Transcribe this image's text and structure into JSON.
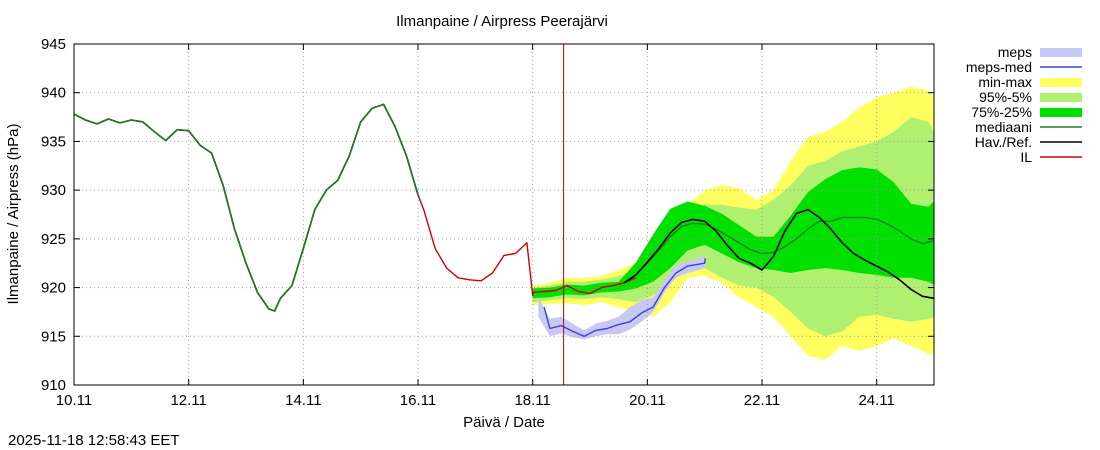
{
  "chart_data": {
    "type": "area",
    "title": "Ilmanpaine / Airpress Peerajärvi",
    "xlabel": "Päivä / Date",
    "ylabel": "Ilmanpaine / Airpress (hPa)",
    "ylim": [
      910,
      945
    ],
    "xlim": [
      0,
      15
    ],
    "x_unit": "days since 10.11 00:00",
    "yticks": [
      910,
      915,
      920,
      925,
      930,
      935,
      940,
      945
    ],
    "xticks": [
      {
        "x": 0,
        "label": "10.11"
      },
      {
        "x": 2,
        "label": "12.11"
      },
      {
        "x": 4,
        "label": "14.11"
      },
      {
        "x": 6,
        "label": "16.11"
      },
      {
        "x": 8,
        "label": "18.11"
      },
      {
        "x": 10,
        "label": "20.11"
      },
      {
        "x": 12,
        "label": "22.11"
      },
      {
        "x": 14,
        "label": "24.11"
      }
    ],
    "grid": true,
    "legend_position": "right",
    "timestamp": "2025-11-18 12:58:43 EET",
    "now_marker_x": 8.54,
    "legend": [
      {
        "label": "meps",
        "kind": "band",
        "color": "#c8c8f4"
      },
      {
        "label": "meps-med",
        "kind": "line",
        "color": "#4040d0"
      },
      {
        "label": "min-max",
        "kind": "band",
        "color": "#ffff60"
      },
      {
        "label": "95%-5%",
        "kind": "band",
        "color": "#b0f070"
      },
      {
        "label": "75%-25%",
        "kind": "band",
        "color": "#00e000"
      },
      {
        "label": "mediaani",
        "kind": "line",
        "color": "#208020"
      },
      {
        "label": "Hav./Ref.",
        "kind": "line",
        "color": "#000000"
      },
      {
        "label": "IL",
        "kind": "line",
        "color": "#d00000"
      }
    ],
    "series": [
      {
        "name": "Hav./Ref. observed",
        "color": "#000000",
        "x": [
          0,
          0.2,
          0.4,
          0.6,
          0.8,
          1.0,
          1.2,
          1.4,
          1.6,
          1.8,
          2.0,
          2.2,
          2.4,
          2.6,
          2.8,
          3.0,
          3.2,
          3.4,
          3.5,
          3.6,
          3.8,
          4.0,
          4.2,
          4.4,
          4.6,
          4.8,
          5.0,
          5.2,
          5.4,
          5.6,
          5.8,
          6.0
        ],
        "y": [
          937.8,
          937.2,
          936.8,
          937.3,
          936.9,
          937.2,
          937.0,
          936.0,
          935.1,
          936.2,
          936.1,
          934.6,
          933.8,
          930.5,
          926.0,
          922.5,
          919.5,
          917.8,
          917.6,
          918.9,
          920.2,
          924.0,
          928.0,
          930.0,
          931.0,
          933.5,
          937.0,
          938.4,
          938.8,
          936.5,
          933.5,
          929.5
        ]
      },
      {
        "name": "mediaani observed",
        "color": "#208020",
        "x": [
          0,
          0.2,
          0.4,
          0.6,
          0.8,
          1.0,
          1.2,
          1.4,
          1.6,
          1.8,
          2.0,
          2.2,
          2.4,
          2.6,
          2.8,
          3.0,
          3.2,
          3.4,
          3.5,
          3.6,
          3.8,
          4.0,
          4.2,
          4.4,
          4.6,
          4.8,
          5.0,
          5.2,
          5.4,
          5.6,
          5.8,
          6.0
        ],
        "y": [
          937.8,
          937.2,
          936.8,
          937.3,
          936.9,
          937.2,
          937.0,
          936.0,
          935.1,
          936.2,
          936.1,
          934.6,
          933.8,
          930.5,
          926.0,
          922.5,
          919.5,
          917.8,
          917.6,
          918.9,
          920.2,
          924.0,
          928.0,
          930.0,
          931.0,
          933.5,
          937.0,
          938.4,
          938.8,
          936.5,
          933.5,
          929.5
        ]
      },
      {
        "name": "IL",
        "color": "#d00000",
        "x": [
          6.0,
          6.1,
          6.3,
          6.5,
          6.7,
          6.9,
          7.1,
          7.3,
          7.5,
          7.7,
          7.9,
          8.0,
          8.01,
          8.2,
          8.4,
          8.6,
          8.8,
          9.0,
          9.2,
          9.4,
          9.6,
          9.8
        ],
        "y": [
          929.5,
          928.0,
          924.0,
          922.0,
          921.0,
          920.8,
          920.7,
          921.5,
          923.3,
          923.5,
          924.6,
          919.2,
          919.5,
          919.6,
          919.7,
          920.2,
          919.6,
          919.4,
          920.0,
          920.2,
          920.5,
          921.0
        ]
      },
      {
        "name": "meps-med",
        "color": "#4040d0",
        "x": [
          8.2,
          8.3,
          8.5,
          8.7,
          8.9,
          9.1,
          9.3,
          9.5,
          9.7,
          9.9,
          10.1,
          10.3,
          10.5,
          10.7,
          10.9,
          11.0,
          11.01
        ],
        "y": [
          918.0,
          915.8,
          916.1,
          915.5,
          915.0,
          915.6,
          915.8,
          916.2,
          916.5,
          917.4,
          918.0,
          920.0,
          921.5,
          922.2,
          922.4,
          922.5,
          923.0
        ]
      },
      {
        "name": "mediaani forecast",
        "color": "#208020",
        "x": [
          9.6,
          9.8,
          10.0,
          10.2,
          10.4,
          10.6,
          10.8,
          11.0,
          11.2,
          11.4,
          11.6,
          11.8,
          12.0,
          12.2,
          12.4,
          12.6,
          12.8,
          13.0,
          13.2,
          13.4,
          13.6,
          13.8,
          14.0,
          14.2,
          14.4,
          14.6,
          14.8,
          15.0
        ],
        "y": [
          920.5,
          921.3,
          922.5,
          923.8,
          925.2,
          926.3,
          926.6,
          926.5,
          926.0,
          925.3,
          924.6,
          923.9,
          923.5,
          923.6,
          924.2,
          925.0,
          926.0,
          926.8,
          926.8,
          927.2,
          927.2,
          927.2,
          927.0,
          926.5,
          925.8,
          925.0,
          924.5,
          924.8
        ]
      },
      {
        "name": "Hav./Ref. forecast",
        "color": "#000000",
        "x": [
          9.6,
          9.8,
          10.0,
          10.2,
          10.4,
          10.6,
          10.8,
          11.0,
          11.2,
          11.4,
          11.6,
          11.8,
          12.0,
          12.2,
          12.4,
          12.6,
          12.8,
          13.0,
          13.2,
          13.4,
          13.6,
          13.8,
          14.0,
          14.2,
          14.4,
          14.6,
          14.8,
          15.0
        ],
        "y": [
          920.5,
          921.3,
          922.6,
          924.0,
          925.6,
          926.7,
          927.0,
          926.8,
          925.8,
          924.3,
          923.0,
          922.5,
          921.8,
          923.2,
          925.8,
          927.6,
          928.0,
          927.2,
          926.0,
          924.6,
          923.5,
          922.8,
          922.2,
          921.6,
          920.8,
          919.8,
          919.1,
          918.9
        ]
      }
    ],
    "bands": [
      {
        "name": "min-max",
        "color": "#ffff60",
        "x": [
          8.0,
          8.3,
          8.6,
          8.9,
          9.2,
          9.5,
          9.8,
          10.1,
          10.4,
          10.7,
          11.0,
          11.3,
          11.6,
          11.9,
          12.2,
          12.5,
          12.8,
          13.1,
          13.4,
          13.7,
          14.0,
          14.3,
          14.6,
          14.9,
          15.0
        ],
        "lo": [
          918.2,
          918.3,
          918.4,
          918.2,
          918.5,
          918.0,
          917.4,
          917.0,
          918.5,
          921.0,
          921.2,
          920.5,
          919.0,
          918.0,
          917.0,
          915.0,
          913.0,
          912.6,
          914.0,
          913.5,
          914.0,
          914.8,
          914.0,
          913.2,
          913.2
        ],
        "hi": [
          920.2,
          920.5,
          921.0,
          921.0,
          921.2,
          921.8,
          922.5,
          924.0,
          926.0,
          928.5,
          930.0,
          930.5,
          930.2,
          929.0,
          930.0,
          933.0,
          935.5,
          936.0,
          937.0,
          938.5,
          939.5,
          940.0,
          940.6,
          940.2,
          939.5
        ]
      },
      {
        "name": "95%-5%",
        "color": "#b0f070",
        "x": [
          8.0,
          8.3,
          8.6,
          8.9,
          9.2,
          9.5,
          9.8,
          10.1,
          10.4,
          10.7,
          11.0,
          11.3,
          11.6,
          11.9,
          12.2,
          12.5,
          12.8,
          13.1,
          13.4,
          13.7,
          14.0,
          14.3,
          14.6,
          14.9,
          15.0
        ],
        "lo": [
          918.5,
          918.7,
          918.9,
          918.8,
          919.0,
          918.8,
          918.5,
          919.2,
          920.6,
          921.8,
          922.0,
          921.0,
          920.2,
          920.0,
          919.0,
          917.5,
          915.8,
          915.0,
          915.5,
          917.0,
          917.2,
          916.8,
          916.5,
          916.8,
          916.9
        ],
        "hi": [
          920.0,
          920.2,
          920.6,
          920.6,
          920.8,
          921.2,
          921.8,
          923.0,
          925.0,
          927.5,
          928.5,
          928.5,
          928.2,
          928.0,
          929.0,
          930.5,
          932.5,
          933.0,
          934.0,
          934.5,
          935.0,
          936.0,
          937.5,
          937.0,
          936.0
        ]
      },
      {
        "name": "75%-25%",
        "color": "#00e000",
        "x": [
          8.0,
          8.3,
          8.6,
          8.9,
          9.2,
          9.5,
          9.8,
          10.1,
          10.4,
          10.7,
          11.0,
          11.3,
          11.6,
          11.9,
          12.2,
          12.5,
          12.8,
          13.1,
          13.4,
          13.7,
          14.0,
          14.3,
          14.6,
          14.9,
          15.0
        ],
        "lo": [
          918.9,
          919.0,
          919.3,
          919.2,
          919.5,
          919.6,
          919.9,
          920.6,
          922.0,
          923.8,
          924.4,
          923.5,
          922.6,
          922.0,
          921.8,
          921.5,
          921.8,
          922.0,
          921.8,
          921.5,
          921.3,
          921.0,
          921.0,
          920.6,
          920.3
        ]
      },
      {
        "name": "meps",
        "color": "#c8c8f4",
        "x": [
          8.1,
          8.3,
          8.5,
          8.7,
          8.9,
          9.1,
          9.3,
          9.5,
          9.7,
          9.9,
          10.1,
          10.3,
          10.5,
          10.7,
          10.9,
          11.0
        ],
        "lo": [
          917.0,
          915.0,
          915.3,
          914.9,
          914.7,
          915.0,
          915.2,
          915.2,
          915.7,
          916.5,
          917.5,
          919.5,
          921.0,
          921.5,
          921.8,
          922.0
        ],
        "hi": [
          919.0,
          916.8,
          917.0,
          916.3,
          915.6,
          916.3,
          916.6,
          917.0,
          918.0,
          918.7,
          919.0,
          920.8,
          922.3,
          922.7,
          923.0,
          923.4
        ]
      }
    ]
  }
}
